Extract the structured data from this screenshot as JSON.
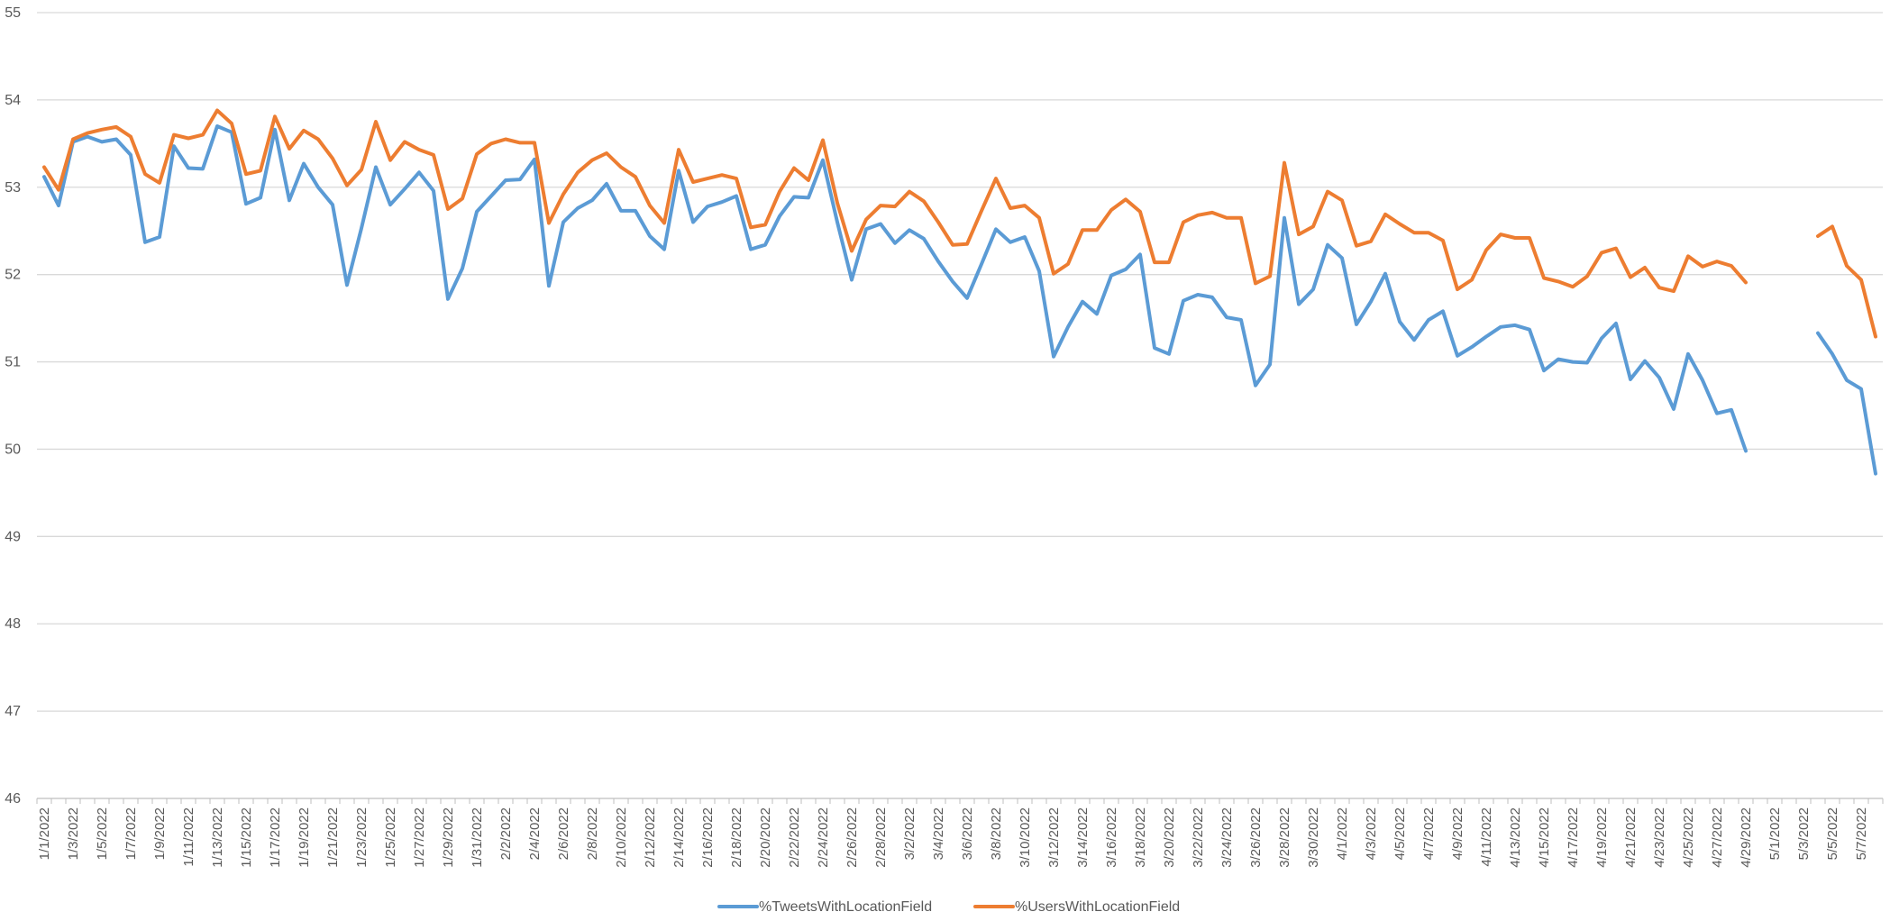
{
  "chart_data": {
    "type": "line",
    "title": "",
    "xlabel": "",
    "ylabel": "",
    "ylim": [
      46,
      55
    ],
    "yticks": [
      46,
      47,
      48,
      49,
      50,
      51,
      52,
      53,
      54,
      55
    ],
    "grid": true,
    "legend_position": "bottom-center",
    "x_tick_labels": [
      "1/1/2022",
      "1/3/2022",
      "1/5/2022",
      "1/7/2022",
      "1/9/2022",
      "1/11/2022",
      "1/13/2022",
      "1/15/2022",
      "1/17/2022",
      "1/19/2022",
      "1/21/2022",
      "1/23/2022",
      "1/25/2022",
      "1/27/2022",
      "1/29/2022",
      "1/31/2022",
      "2/2/2022",
      "2/4/2022",
      "2/6/2022",
      "2/8/2022",
      "2/10/2022",
      "2/12/2022",
      "2/14/2022",
      "2/16/2022",
      "2/18/2022",
      "2/20/2022",
      "2/22/2022",
      "2/24/2022",
      "2/26/2022",
      "2/28/2022",
      "3/2/2022",
      "3/4/2022",
      "3/6/2022",
      "3/8/2022",
      "3/10/2022",
      "3/12/2022",
      "3/14/2022",
      "3/16/2022",
      "3/18/2022",
      "3/20/2022",
      "3/22/2022",
      "3/24/2022",
      "3/26/2022",
      "3/28/2022",
      "3/30/2022",
      "4/1/2022",
      "4/3/2022",
      "4/5/2022",
      "4/7/2022",
      "4/9/2022",
      "4/11/2022",
      "4/13/2022",
      "4/15/2022",
      "4/17/2022",
      "4/19/2022",
      "4/21/2022",
      "4/23/2022",
      "4/25/2022",
      "4/27/2022",
      "4/29/2022",
      "5/1/2022",
      "5/3/2022",
      "5/5/2022",
      "5/7/2022"
    ],
    "x_start": "1/1/2022",
    "x_end": "5/7/2022",
    "series": [
      {
        "name": "%TweetsWithLocationField",
        "color": "#5B9BD5",
        "values": [
          53.12,
          52.79,
          53.52,
          53.58,
          53.52,
          53.55,
          53.37,
          52.37,
          52.43,
          53.47,
          53.22,
          53.21,
          53.7,
          53.63,
          52.81,
          52.88,
          53.66,
          52.85,
          53.27,
          53.0,
          52.8,
          51.88,
          52.53,
          53.23,
          52.8,
          52.98,
          53.17,
          52.96,
          51.72,
          52.07,
          52.72,
          52.9,
          53.08,
          53.09,
          53.32,
          51.87,
          52.6,
          52.76,
          52.85,
          53.04,
          52.73,
          52.73,
          52.44,
          52.29,
          53.19,
          52.6,
          52.78,
          52.83,
          52.9,
          52.29,
          52.34,
          52.67,
          52.89,
          52.88,
          53.31,
          52.6,
          51.94,
          52.52,
          52.58,
          52.36,
          52.51,
          52.41,
          52.15,
          51.92,
          51.73,
          52.12,
          52.52,
          52.37,
          52.43,
          52.04,
          51.06,
          51.4,
          51.69,
          51.55,
          51.99,
          52.06,
          52.23,
          51.16,
          51.09,
          51.7,
          51.77,
          51.74,
          51.51,
          51.48,
          50.73,
          50.97,
          52.65,
          51.66,
          51.83,
          52.34,
          52.19,
          51.43,
          51.69,
          52.01,
          51.46,
          51.25,
          51.48,
          51.58,
          51.07,
          51.17,
          51.29,
          51.4,
          51.42,
          51.37,
          50.9,
          51.03,
          51.0,
          50.99,
          51.27,
          51.44,
          50.8,
          51.01,
          50.82,
          50.46,
          51.09,
          50.79,
          50.41,
          50.45,
          49.98,
          null,
          null,
          null,
          null,
          51.33,
          51.09,
          50.79,
          50.69,
          49.72
        ]
      },
      {
        "name": "%UsersWithLocationField",
        "color": "#ED7D31",
        "values": [
          53.23,
          52.97,
          53.55,
          53.62,
          53.66,
          53.69,
          53.58,
          53.15,
          53.05,
          53.6,
          53.56,
          53.6,
          53.88,
          53.73,
          53.15,
          53.19,
          53.81,
          53.44,
          53.65,
          53.55,
          53.33,
          53.02,
          53.2,
          53.75,
          53.31,
          53.52,
          53.43,
          53.37,
          52.75,
          52.87,
          53.38,
          53.5,
          53.55,
          53.51,
          53.51,
          52.59,
          52.92,
          53.17,
          53.31,
          53.39,
          53.23,
          53.12,
          52.79,
          52.59,
          53.43,
          53.06,
          53.1,
          53.14,
          53.1,
          52.54,
          52.57,
          52.95,
          53.22,
          53.08,
          53.54,
          52.82,
          52.27,
          52.63,
          52.79,
          52.78,
          52.95,
          52.84,
          52.6,
          52.34,
          52.35,
          52.73,
          53.1,
          52.76,
          52.79,
          52.65,
          52.01,
          52.12,
          52.51,
          52.51,
          52.74,
          52.86,
          52.72,
          52.14,
          52.14,
          52.6,
          52.68,
          52.71,
          52.65,
          52.65,
          51.9,
          51.98,
          53.28,
          52.46,
          52.55,
          52.95,
          52.85,
          52.33,
          52.38,
          52.69,
          52.58,
          52.48,
          52.48,
          52.39,
          51.83,
          51.94,
          52.28,
          52.46,
          52.42,
          52.42,
          51.96,
          51.92,
          51.86,
          51.98,
          52.25,
          52.3,
          51.97,
          52.08,
          51.85,
          51.81,
          52.21,
          52.09,
          52.15,
          52.1,
          51.91,
          null,
          null,
          null,
          null,
          52.44,
          52.55,
          52.1,
          51.94,
          51.29
        ]
      }
    ]
  }
}
